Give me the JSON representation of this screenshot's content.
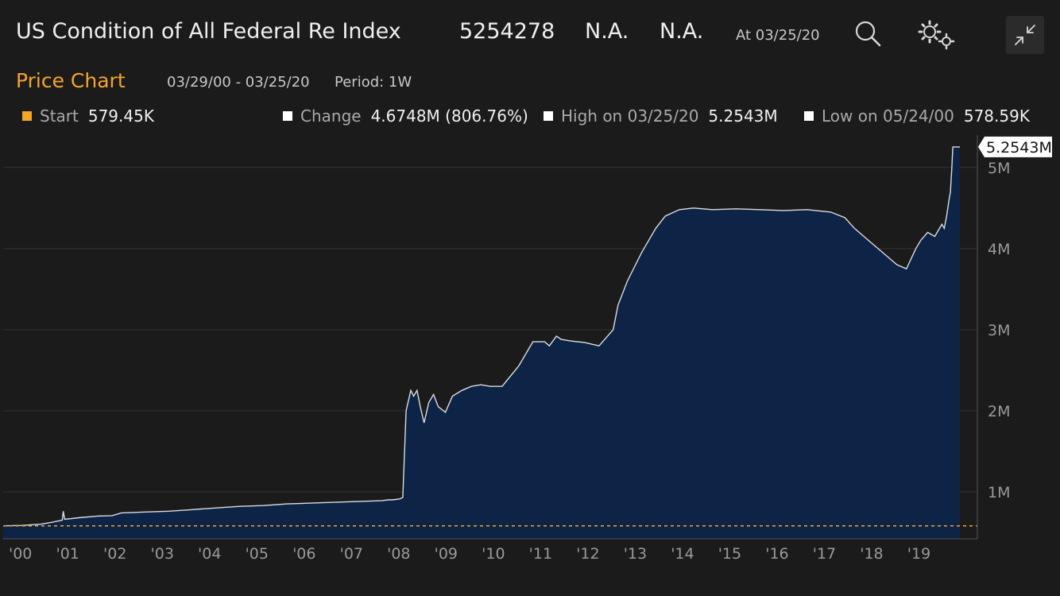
{
  "header": {
    "title": "US Condition of All Federal Re Index",
    "value": "5254278",
    "field2": "N.A.",
    "field3": "N.A.",
    "as_of": "At 03/25/20",
    "icons": [
      "search-icon",
      "gears-icon",
      "collapse-icon"
    ]
  },
  "subheader": {
    "chart_title": "Price Chart",
    "date_range": "03/29/00 - 03/25/20",
    "period": "Period: 1W"
  },
  "legend": {
    "start_label": "Start",
    "start_value": "579.45K",
    "start_color": "#f5a623",
    "change_label": "Change",
    "change_value": "4.6748M (806.76%)",
    "high_label": "High on 03/25/20",
    "high_value": "5.2543M",
    "low_label": "Low on 05/24/00",
    "low_value": "578.59K"
  },
  "chart_data": {
    "type": "area",
    "title": "",
    "xlabel": "",
    "ylabel": "",
    "x_tick_labels": [
      "'00",
      "'01",
      "'02",
      "'03",
      "'04",
      "'05",
      "'06",
      "'07",
      "'08",
      "'09",
      "'10",
      "'11",
      "'12",
      "'13",
      "'14",
      "'15",
      "'16",
      "'17",
      "'18",
      "'19"
    ],
    "y_tick_labels": [
      "1M",
      "2M",
      "3M",
      "4M",
      "5M"
    ],
    "y_ticks": [
      1000000,
      2000000,
      3000000,
      4000000,
      5000000
    ],
    "xlim": [
      2000.0,
      2020.6
    ],
    "ylim": [
      420000,
      5400000
    ],
    "last_value_label": "5.2543M",
    "reference_line": {
      "value": 579450,
      "color": "#f5a623",
      "style": "dashed"
    },
    "fill_color": "#0d2447",
    "line_color": "#dcdcdc",
    "grid": true,
    "series": [
      {
        "x": [
          2000.0,
          2000.4,
          2000.8,
          2001.0,
          2001.25,
          2001.27,
          2001.3,
          2001.6,
          2002.0,
          2002.3,
          2002.5,
          2003.0,
          2003.5,
          2004.0,
          2004.5,
          2005.0,
          2005.5,
          2006.0,
          2006.5,
          2007.0,
          2007.5,
          2008.0,
          2008.15,
          2008.22,
          2008.3,
          2008.38,
          2008.45,
          2008.52,
          2008.62,
          2008.68,
          2008.75,
          2008.82,
          2008.9,
          2009.0,
          2009.1,
          2009.2,
          2009.35,
          2009.5,
          2009.7,
          2009.9,
          2010.1,
          2010.3,
          2010.55,
          2010.9,
          2011.2,
          2011.45,
          2011.55,
          2011.7,
          2011.8,
          2012.0,
          2012.3,
          2012.6,
          2012.9,
          2013.0,
          2013.2,
          2013.5,
          2013.8,
          2014.0,
          2014.3,
          2014.6,
          2014.8,
          2015.0,
          2015.5,
          2016.0,
          2016.5,
          2017.0,
          2017.5,
          2017.8,
          2018.0,
          2018.3,
          2018.6,
          2018.9,
          2019.1,
          2019.3,
          2019.4,
          2019.55,
          2019.7,
          2019.85,
          2019.9,
          2019.95,
          2020.0,
          2020.03,
          2020.06,
          2020.08,
          2020.12,
          2020.15,
          2020.18,
          2020.2,
          2020.23
        ],
        "y": [
          579450,
          585000,
          600000,
          620000,
          650000,
          760000,
          660000,
          680000,
          700000,
          705000,
          740000,
          750000,
          760000,
          780000,
          800000,
          820000,
          830000,
          850000,
          860000,
          870000,
          880000,
          890000,
          900000,
          900000,
          905000,
          910000,
          930000,
          2000000,
          2250000,
          2180000,
          2250000,
          2050000,
          1850000,
          2100000,
          2200000,
          2050000,
          1980000,
          2180000,
          2250000,
          2300000,
          2320000,
          2300000,
          2300000,
          2550000,
          2850000,
          2850000,
          2800000,
          2920000,
          2880000,
          2860000,
          2840000,
          2800000,
          3000000,
          3300000,
          3600000,
          3950000,
          4250000,
          4400000,
          4480000,
          4500000,
          4490000,
          4480000,
          4490000,
          4480000,
          4470000,
          4480000,
          4450000,
          4380000,
          4250000,
          4100000,
          3950000,
          3800000,
          3750000,
          4000000,
          4100000,
          4200000,
          4150000,
          4300000,
          4250000,
          4400000,
          4600000,
          4700000,
          5000000,
          5254278,
          5254278,
          5254278,
          5254278,
          5254278,
          5254278
        ]
      }
    ]
  }
}
